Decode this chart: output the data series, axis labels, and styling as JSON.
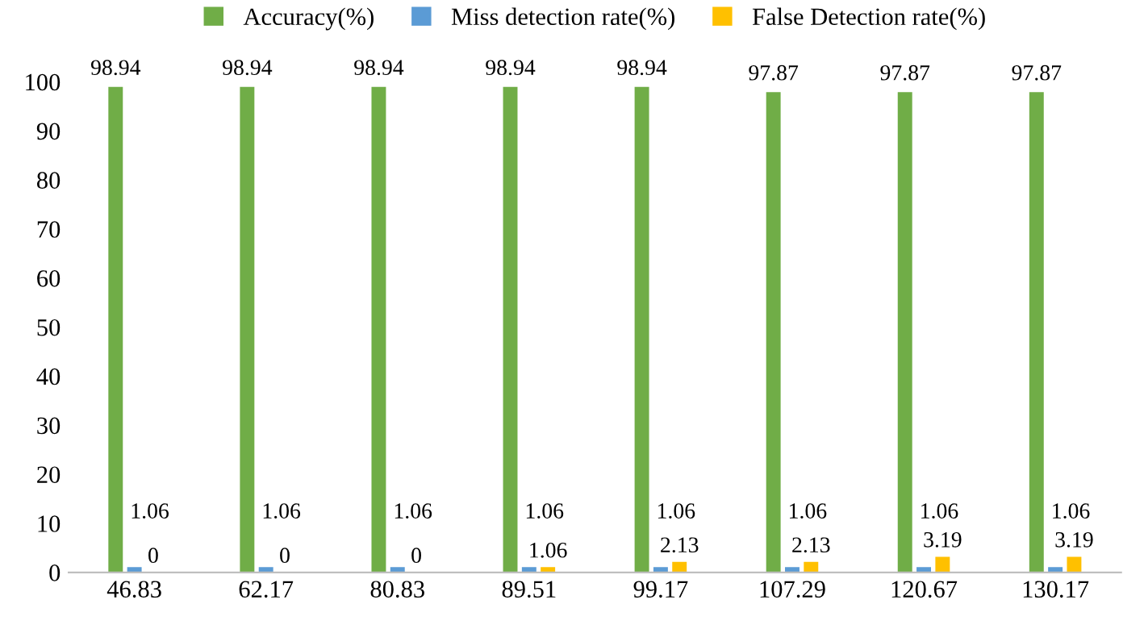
{
  "chart_data": {
    "type": "bar",
    "categories": [
      "46.83",
      "62.17",
      "80.83",
      "89.51",
      "99.17",
      "107.29",
      "120.67",
      "130.17"
    ],
    "series": [
      {
        "name": "Accuracy(%)",
        "color": "#70ad47",
        "values": [
          98.94,
          98.94,
          98.94,
          98.94,
          98.94,
          97.87,
          97.87,
          97.87
        ]
      },
      {
        "name": "Miss detection rate(%)",
        "color": "#5b9bd5",
        "values": [
          1.06,
          1.06,
          1.06,
          1.06,
          1.06,
          1.06,
          1.06,
          1.06
        ]
      },
      {
        "name": "False Detection rate(%)",
        "color": "#ffc000",
        "values": [
          0,
          0,
          0,
          1.06,
          2.13,
          2.13,
          3.19,
          3.19
        ]
      }
    ],
    "ylim": [
      0,
      100
    ],
    "yticks": [
      0,
      10,
      20,
      30,
      40,
      50,
      60,
      70,
      80,
      90,
      100
    ],
    "data_labels": true,
    "legend": "top",
    "grid": false
  }
}
